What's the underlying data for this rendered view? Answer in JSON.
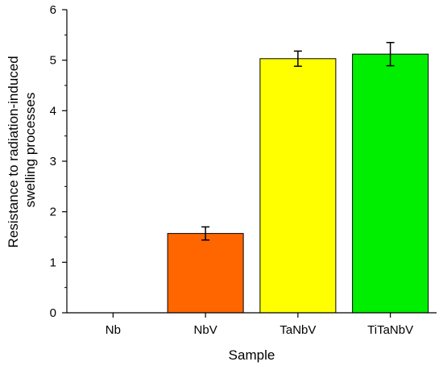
{
  "chart_data": {
    "type": "bar",
    "categories": [
      "Nb",
      "NbV",
      "TaNbV",
      "TiTaNbV"
    ],
    "values": [
      0,
      1.57,
      5.03,
      5.12
    ],
    "errors": [
      0,
      0.13,
      0.15,
      0.23
    ],
    "xlabel": "Sample",
    "ylabel_lines": [
      "Resistance to radiation-induced",
      "swelling processes"
    ],
    "ylim": [
      0,
      6
    ],
    "yticks": [
      0,
      1,
      2,
      3,
      4,
      5,
      6
    ],
    "grid": false,
    "legend": "none",
    "bar_colors": [
      "#ff6600",
      "#ff6600",
      "#ffff00",
      "#00ee00"
    ],
    "bar_edge_color": "#000000"
  }
}
